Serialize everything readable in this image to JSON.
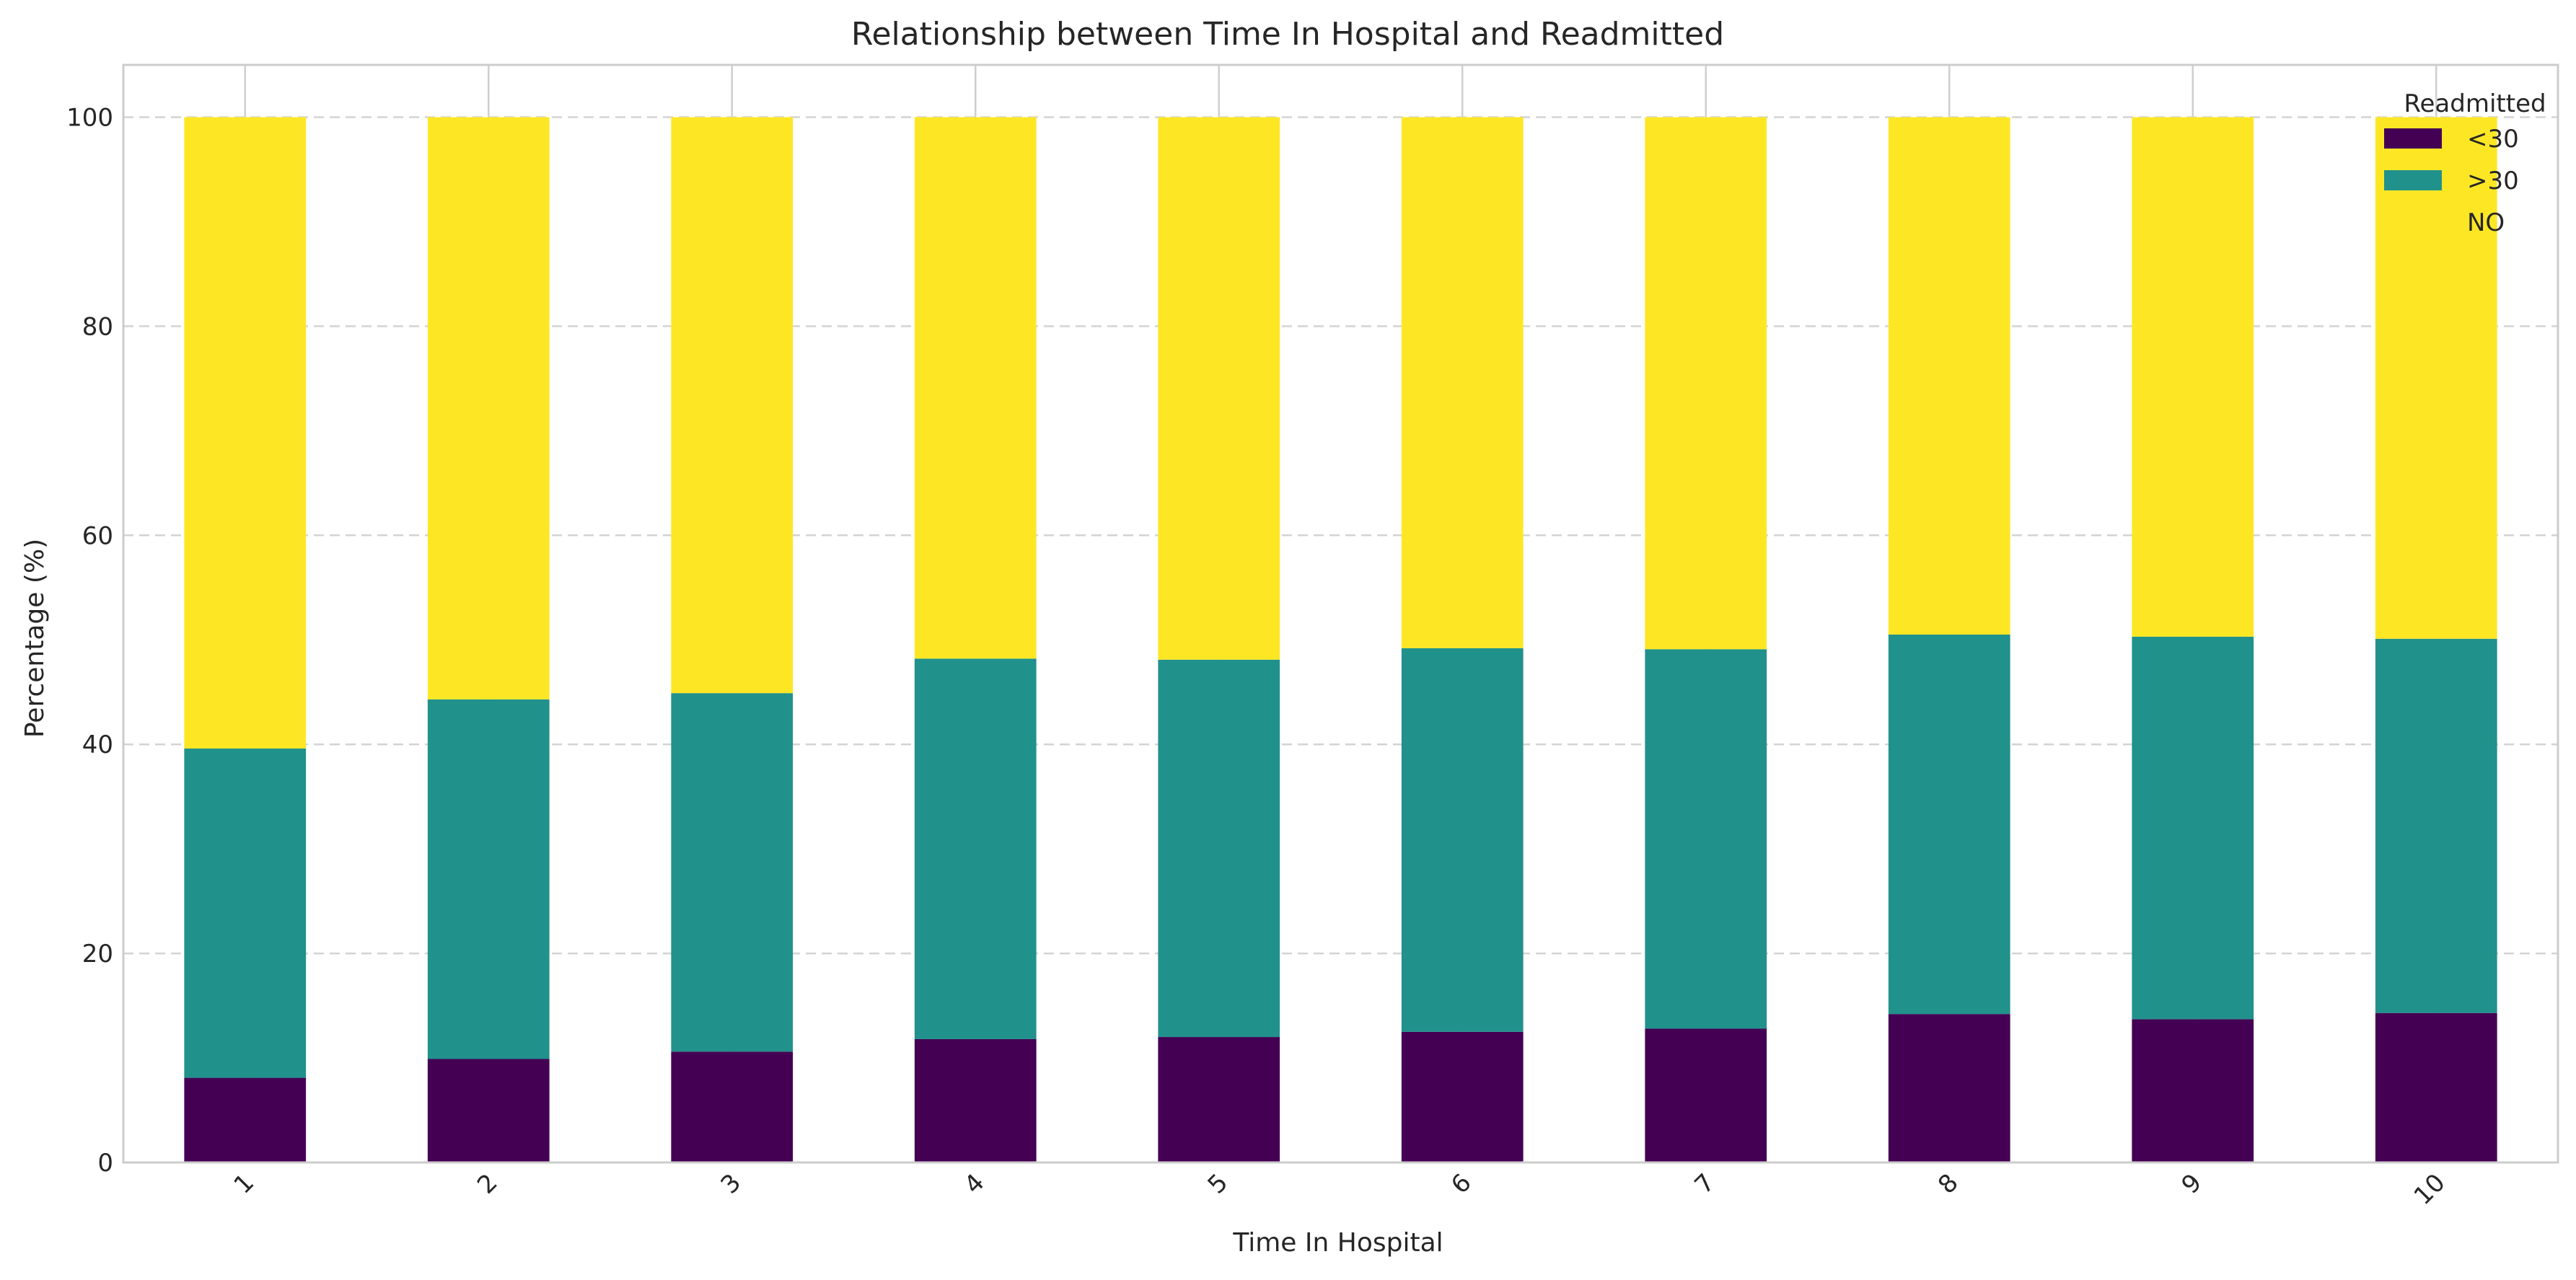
{
  "chart_data": {
    "type": "bar",
    "stacked": true,
    "title": "Relationship between Time In Hospital and Readmitted",
    "xlabel": "Time In Hospital",
    "ylabel": "Percentage (%)",
    "ylim": [
      0,
      105
    ],
    "yticks": [
      "0",
      "20",
      "40",
      "60",
      "80",
      "100"
    ],
    "categories": [
      "1",
      "2",
      "3",
      "4",
      "5",
      "6",
      "7",
      "8",
      "9",
      "10"
    ],
    "series": [
      {
        "name": "<30",
        "color": "#440154",
        "values": [
          8.1,
          9.9,
          10.6,
          11.8,
          12.0,
          12.5,
          12.8,
          14.2,
          13.7,
          14.3
        ]
      },
      {
        "name": ">30",
        "color": "#21918c",
        "values": [
          31.5,
          34.4,
          34.3,
          36.4,
          36.1,
          36.7,
          36.3,
          36.3,
          36.6,
          35.8
        ]
      },
      {
        "name": "NO",
        "color": "#fde725",
        "values": [
          60.4,
          55.7,
          55.1,
          51.8,
          51.9,
          50.8,
          50.9,
          49.5,
          49.7,
          49.9
        ]
      }
    ],
    "legend": {
      "title": "Readmitted",
      "position": "top-right"
    },
    "grid": {
      "y": true,
      "x_style": "ticks-only"
    }
  }
}
